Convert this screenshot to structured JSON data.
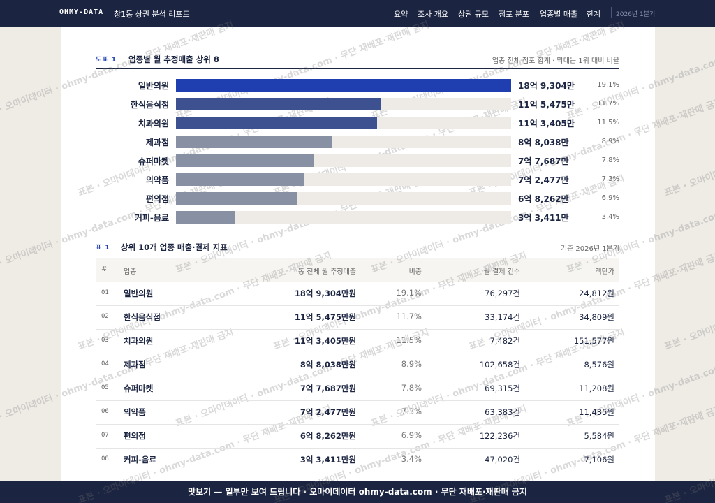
{
  "header": {
    "brand": "OHMY-DATA",
    "report_title": "창1동 상권 분석 리포트",
    "nav": [
      "요약",
      "조사 개요",
      "상권 규모",
      "점포 분포",
      "업종별 매출",
      "한계"
    ],
    "period": "2026년 1분기"
  },
  "figure": {
    "tag": "도표 1",
    "title": "업종별 월 추정매출 상위 8",
    "note": "업종 전체 점포 합계 · 막대는 1위 대비 비율",
    "bars": [
      {
        "label": "일반의원",
        "value": 189304,
        "value_label": "18억 9,304만",
        "share": "19.1%",
        "color": "#1f3fb0"
      },
      {
        "label": "한식음식점",
        "value": 115475,
        "value_label": "11억 5,475만",
        "share": "11.7%",
        "color": "#3d5190"
      },
      {
        "label": "치과의원",
        "value": 113405,
        "value_label": "11억 3,405만",
        "share": "11.5%",
        "color": "#3d5190"
      },
      {
        "label": "제과점",
        "value": 88038,
        "value_label": "8억 8,038만",
        "share": "8.9%",
        "color": "#8890a4"
      },
      {
        "label": "슈퍼마켓",
        "value": 77687,
        "value_label": "7억 7,687만",
        "share": "7.8%",
        "color": "#8890a4"
      },
      {
        "label": "의약품",
        "value": 72477,
        "value_label": "7억 2,477만",
        "share": "7.3%",
        "color": "#8890a4"
      },
      {
        "label": "편의점",
        "value": 68262,
        "value_label": "6억 8,262만",
        "share": "6.9%",
        "color": "#8890a4"
      },
      {
        "label": "커피-음료",
        "value": 33411,
        "value_label": "3억 3,411만",
        "share": "3.4%",
        "color": "#8890a4"
      }
    ]
  },
  "table": {
    "tag": "표 1",
    "title": "상위 10개 업종 매출·결제 지표",
    "note": "기준 2026년 1분기",
    "columns": [
      "#",
      "업종",
      "동 전체 월 추정매출",
      "비중",
      "월 결제 건수",
      "객단가"
    ],
    "rows": [
      [
        "01",
        "일반의원",
        "18억 9,304만원",
        "19.1%",
        "76,297건",
        "24,812원"
      ],
      [
        "02",
        "한식음식점",
        "11억 5,475만원",
        "11.7%",
        "33,174건",
        "34,809원"
      ],
      [
        "03",
        "치과의원",
        "11억 3,405만원",
        "11.5%",
        "7,482건",
        "151,577원"
      ],
      [
        "04",
        "제과점",
        "8억 8,038만원",
        "8.9%",
        "102,658건",
        "8,576원"
      ],
      [
        "05",
        "슈퍼마켓",
        "7억 7,687만원",
        "7.8%",
        "69,315건",
        "11,208원"
      ],
      [
        "06",
        "의약품",
        "7억 2,477만원",
        "7.3%",
        "63,383건",
        "11,435원"
      ],
      [
        "07",
        "편의점",
        "6억 8,262만원",
        "6.9%",
        "122,236건",
        "5,584원"
      ],
      [
        "08",
        "커피-음료",
        "3억 3,411만원",
        "3.4%",
        "47,020건",
        "7,106원"
      ]
    ]
  },
  "watermark": "표본 · 오마이데이터 · ohmy-data.com · 무단 재배포·재판매 금지",
  "footer": "맛보기 — 일부만 보여 드립니다 · 오마이데이터 ohmy-data.com · 무단 재배포·재판매 금지"
}
